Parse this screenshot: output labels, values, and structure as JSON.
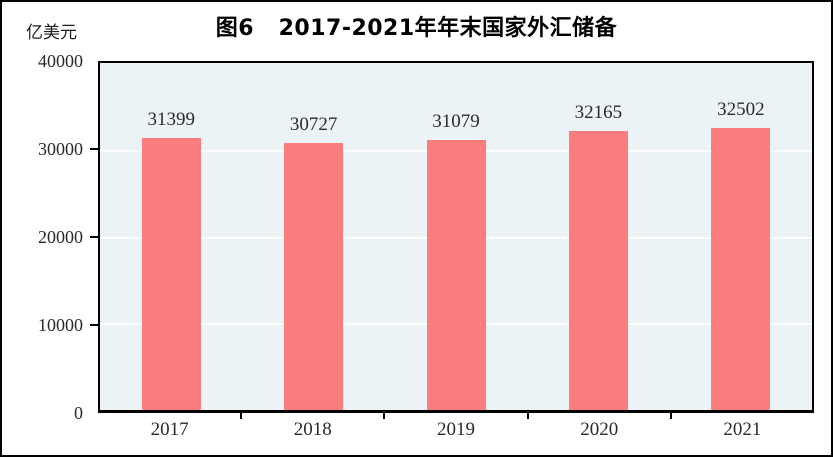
{
  "figure": {
    "title": "图6   2017-2021年年末国家外汇储备",
    "unit_label": "亿美元"
  },
  "chart_data": {
    "type": "bar",
    "title": "图6   2017-2021年年末国家外汇储备",
    "unit_label": "亿美元",
    "categories": [
      "2017",
      "2018",
      "2019",
      "2020",
      "2021"
    ],
    "values": [
      31399,
      30727,
      31079,
      32165,
      32502
    ],
    "data_labels_shown": true,
    "xlabel": "",
    "ylabel": "亿美元",
    "ylim": [
      0,
      40000
    ],
    "yticks": [
      0,
      10000,
      20000,
      30000,
      40000
    ],
    "grid": "horizontal-white",
    "legend": "none",
    "bar_color": "#fc7d7d",
    "plot_background": "#ecf3f7",
    "gridline_color": "#ffffff"
  }
}
